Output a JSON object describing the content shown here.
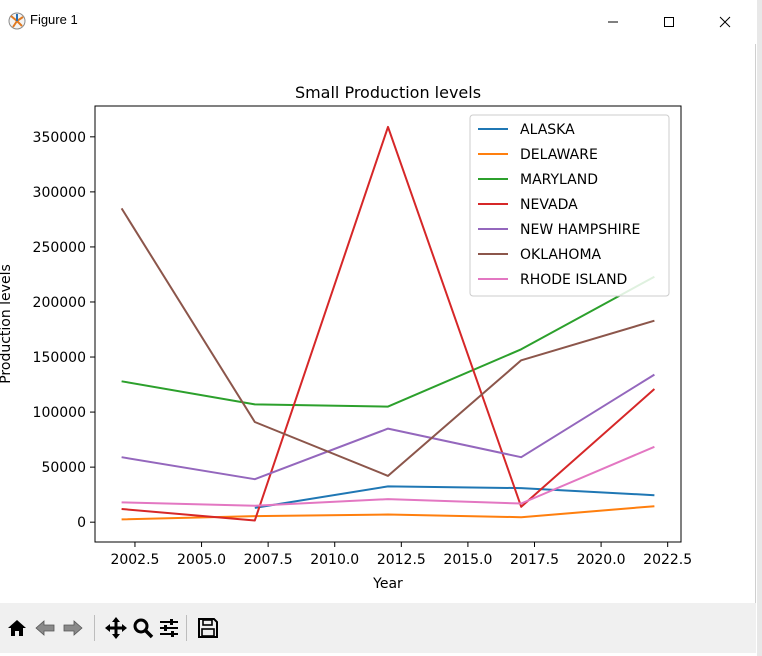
{
  "window": {
    "title": "Figure 1",
    "icons": {
      "app": "matplotlib-icon",
      "minimize": "minimize-icon",
      "maximize": "maximize-icon",
      "close": "close-icon"
    }
  },
  "toolbar": {
    "buttons": [
      {
        "name": "home-icon",
        "label": "Home"
      },
      {
        "name": "back-arrow-icon",
        "label": "Back"
      },
      {
        "name": "forward-arrow-icon",
        "label": "Forward"
      },
      {
        "name": "pan-icon",
        "label": "Pan"
      },
      {
        "name": "zoom-icon",
        "label": "Zoom"
      },
      {
        "name": "configure-subplots-icon",
        "label": "Subplots"
      },
      {
        "name": "save-icon",
        "label": "Save"
      }
    ]
  },
  "chart_data": {
    "type": "line",
    "title": "Small Production levels",
    "xlabel": "Year",
    "ylabel": "Production levels",
    "xlim": [
      2001.0,
      2023.0
    ],
    "ylim": [
      -18000,
      378000
    ],
    "xticks": [
      2002.5,
      2005.0,
      2007.5,
      2010.0,
      2012.5,
      2015.0,
      2017.5,
      2020.0,
      2022.5
    ],
    "xtick_labels": [
      "2002.5",
      "2005.0",
      "2007.5",
      "2010.0",
      "2012.5",
      "2015.0",
      "2017.5",
      "2020.0",
      "2022.5"
    ],
    "yticks": [
      0,
      50000,
      100000,
      150000,
      200000,
      250000,
      300000,
      350000
    ],
    "ytick_labels": [
      "0",
      "50000",
      "100000",
      "150000",
      "200000",
      "250000",
      "300000",
      "350000"
    ],
    "grid": false,
    "legend_position": "top-right",
    "series": [
      {
        "name": "ALASKA",
        "color": "#1f77b4",
        "x": [
          2007,
          2012,
          2017,
          2022
        ],
        "values": [
          13000,
          32500,
          31000,
          24500
        ]
      },
      {
        "name": "DELAWARE",
        "color": "#ff7f0e",
        "x": [
          2002,
          2007,
          2012,
          2017,
          2022
        ],
        "values": [
          2500,
          5500,
          7000,
          4500,
          14500
        ]
      },
      {
        "name": "MARYLAND",
        "color": "#2ca02c",
        "x": [
          2002,
          2007,
          2012,
          2017,
          2022
        ],
        "values": [
          128000,
          107000,
          105000,
          157000,
          223000
        ]
      },
      {
        "name": "NEVADA",
        "color": "#d62728",
        "x": [
          2002,
          2007,
          2012,
          2017,
          2022
        ],
        "values": [
          12000,
          1500,
          359000,
          14000,
          121000
        ]
      },
      {
        "name": "NEW HAMPSHIRE",
        "color": "#9467bd",
        "x": [
          2002,
          2007,
          2012,
          2017,
          2022
        ],
        "values": [
          59000,
          39000,
          85000,
          59000,
          134000
        ]
      },
      {
        "name": "OKLAHOMA",
        "color": "#8c564b",
        "x": [
          2002,
          2007,
          2012,
          2017,
          2022
        ],
        "values": [
          285000,
          91000,
          42000,
          147000,
          183000
        ]
      },
      {
        "name": "RHODE ISLAND",
        "color": "#e377c2",
        "x": [
          2002,
          2007,
          2012,
          2017,
          2022
        ],
        "values": [
          18000,
          15000,
          21000,
          17000,
          68500
        ]
      }
    ]
  }
}
